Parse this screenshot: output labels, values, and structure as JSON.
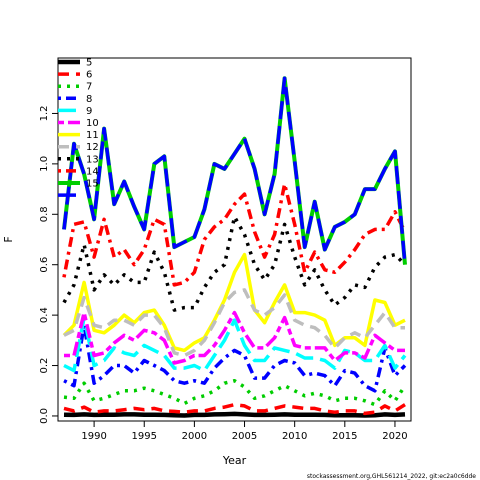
{
  "chart_data": {
    "type": "line",
    "xlabel": "Year",
    "ylabel": "F",
    "xlim": [
      1986.4,
      2021.6
    ],
    "ylim": [
      -0.02,
      1.42
    ],
    "x_ticks": [
      1990,
      1995,
      2000,
      2005,
      2010,
      2015,
      2020
    ],
    "y_ticks": [
      0.0,
      0.2,
      0.4,
      0.6,
      0.8,
      1.0,
      1.2
    ],
    "legend_position": "top-left",
    "footer": "stockassessment.org,GHL561214_2022,  git:ec2a0c6dde",
    "x": [
      1987,
      1988,
      1989,
      1990,
      1991,
      1992,
      1993,
      1994,
      1995,
      1996,
      1997,
      1998,
      1999,
      2000,
      2001,
      2002,
      2003,
      2004,
      2005,
      2006,
      2007,
      2008,
      2009,
      2010,
      2011,
      2012,
      2013,
      2014,
      2015,
      2016,
      2017,
      2018,
      2019,
      2020,
      2021
    ],
    "series": [
      {
        "name": "5",
        "color": "#000000",
        "dash": "solid",
        "width": 4.5,
        "values": [
          0.005,
          0.004,
          0.006,
          0.004,
          0.005,
          0.005,
          0.006,
          0.006,
          0.005,
          0.005,
          0.004,
          0.003,
          0.002,
          0.004,
          0.004,
          0.006,
          0.007,
          0.008,
          0.006,
          0.004,
          0.004,
          0.005,
          0.006,
          0.005,
          0.005,
          0.005,
          0.004,
          0.003,
          0.003,
          0.003,
          0.002,
          0.003,
          0.006,
          0.004,
          0.006
        ]
      },
      {
        "name": "6",
        "color": "#ff0000",
        "dash": "dash",
        "width": 3.5,
        "values": [
          0.03,
          0.02,
          0.035,
          0.015,
          0.02,
          0.02,
          0.025,
          0.03,
          0.025,
          0.03,
          0.02,
          0.018,
          0.015,
          0.02,
          0.02,
          0.03,
          0.035,
          0.045,
          0.04,
          0.02,
          0.02,
          0.03,
          0.04,
          0.035,
          0.03,
          0.03,
          0.02,
          0.015,
          0.02,
          0.02,
          0.01,
          0.015,
          0.04,
          0.02,
          0.045
        ]
      },
      {
        "name": "7",
        "color": "#00cd00",
        "dash": "dot",
        "width": 3.5,
        "values": [
          0.075,
          0.07,
          0.13,
          0.06,
          0.07,
          0.085,
          0.1,
          0.1,
          0.11,
          0.1,
          0.085,
          0.07,
          0.05,
          0.07,
          0.08,
          0.1,
          0.13,
          0.14,
          0.115,
          0.07,
          0.08,
          0.1,
          0.12,
          0.1,
          0.08,
          0.09,
          0.08,
          0.06,
          0.07,
          0.07,
          0.06,
          0.045,
          0.1,
          0.06,
          0.12
        ]
      },
      {
        "name": "8",
        "color": "#0000ff",
        "dash": "dashdot",
        "width": 3.5,
        "values": [
          0.14,
          0.12,
          0.36,
          0.13,
          0.16,
          0.2,
          0.2,
          0.17,
          0.22,
          0.2,
          0.18,
          0.14,
          0.13,
          0.14,
          0.13,
          0.19,
          0.23,
          0.26,
          0.24,
          0.15,
          0.15,
          0.2,
          0.22,
          0.21,
          0.16,
          0.17,
          0.16,
          0.12,
          0.18,
          0.17,
          0.12,
          0.1,
          0.27,
          0.16,
          0.2
        ]
      },
      {
        "name": "9",
        "color": "#00ffff",
        "dash": "longdash",
        "width": 3.5,
        "values": [
          0.2,
          0.18,
          0.39,
          0.2,
          0.22,
          0.27,
          0.25,
          0.24,
          0.28,
          0.26,
          0.24,
          0.19,
          0.19,
          0.2,
          0.18,
          0.24,
          0.3,
          0.38,
          0.28,
          0.22,
          0.22,
          0.27,
          0.26,
          0.25,
          0.23,
          0.23,
          0.22,
          0.19,
          0.26,
          0.25,
          0.22,
          0.22,
          0.28,
          0.19,
          0.24
        ]
      },
      {
        "name": "10",
        "color": "#ff00ff",
        "dash": "twodash",
        "width": 3.5,
        "values": [
          0.24,
          0.24,
          0.41,
          0.24,
          0.25,
          0.29,
          0.32,
          0.3,
          0.34,
          0.33,
          0.3,
          0.21,
          0.22,
          0.24,
          0.24,
          0.28,
          0.34,
          0.41,
          0.33,
          0.27,
          0.27,
          0.31,
          0.39,
          0.28,
          0.27,
          0.27,
          0.27,
          0.22,
          0.25,
          0.25,
          0.23,
          0.32,
          0.29,
          0.26,
          0.26
        ]
      },
      {
        "name": "11",
        "color": "#ffff00",
        "dash": "solid",
        "width": 3.5,
        "values": [
          0.32,
          0.36,
          0.53,
          0.34,
          0.33,
          0.36,
          0.4,
          0.37,
          0.41,
          0.42,
          0.36,
          0.27,
          0.26,
          0.29,
          0.31,
          0.38,
          0.46,
          0.57,
          0.64,
          0.42,
          0.37,
          0.45,
          0.52,
          0.41,
          0.41,
          0.4,
          0.38,
          0.28,
          0.31,
          0.31,
          0.28,
          0.46,
          0.45,
          0.36,
          0.38
        ]
      },
      {
        "name": "12",
        "color": "#bebebe",
        "dash": "dash",
        "width": 3.5,
        "values": [
          0.32,
          0.34,
          0.47,
          0.36,
          0.35,
          0.38,
          0.38,
          0.36,
          0.4,
          0.4,
          0.35,
          0.25,
          0.24,
          0.26,
          0.3,
          0.37,
          0.45,
          0.49,
          0.5,
          0.42,
          0.4,
          0.43,
          0.48,
          0.38,
          0.36,
          0.35,
          0.32,
          0.27,
          0.31,
          0.33,
          0.31,
          0.36,
          0.41,
          0.35,
          0.35
        ]
      },
      {
        "name": "13",
        "color": "#000000",
        "dash": "dot",
        "width": 3.5,
        "values": [
          0.45,
          0.52,
          0.68,
          0.5,
          0.56,
          0.52,
          0.56,
          0.53,
          0.53,
          0.65,
          0.57,
          0.42,
          0.43,
          0.43,
          0.51,
          0.57,
          0.6,
          0.79,
          0.72,
          0.6,
          0.54,
          0.6,
          0.76,
          0.63,
          0.52,
          0.58,
          0.5,
          0.44,
          0.47,
          0.52,
          0.51,
          0.59,
          0.63,
          0.64,
          0.6
        ]
      },
      {
        "name": "14",
        "color": "#ff0000",
        "dash": "dashdot",
        "width": 3.5,
        "values": [
          0.55,
          0.76,
          0.77,
          0.63,
          0.78,
          0.63,
          0.66,
          0.6,
          0.66,
          0.78,
          0.76,
          0.52,
          0.53,
          0.57,
          0.7,
          0.75,
          0.78,
          0.84,
          0.88,
          0.73,
          0.63,
          0.72,
          0.92,
          0.76,
          0.57,
          0.65,
          0.58,
          0.57,
          0.61,
          0.66,
          0.72,
          0.74,
          0.74,
          0.81,
          0.73
        ]
      },
      {
        "name": "15",
        "color": "#00cd00",
        "dash": "solid",
        "width": 4.0,
        "values": [
          0.74,
          1.08,
          0.96,
          0.78,
          1.14,
          0.84,
          0.93,
          0.83,
          0.74,
          1.0,
          1.03,
          0.67,
          0.69,
          0.71,
          0.82,
          1.0,
          0.98,
          1.04,
          1.1,
          0.98,
          0.8,
          0.96,
          1.34,
          1.01,
          0.67,
          0.85,
          0.66,
          0.75,
          0.77,
          0.8,
          0.9,
          0.9,
          0.98,
          1.05,
          0.6
        ]
      },
      {
        "name": "",
        "color": "#0000ff",
        "dash": "longdash",
        "width": 3.5,
        "values": [
          0.74,
          1.08,
          0.96,
          0.78,
          1.14,
          0.84,
          0.93,
          0.83,
          0.74,
          1.0,
          1.03,
          0.67,
          0.69,
          0.71,
          0.82,
          1.0,
          0.98,
          1.04,
          1.1,
          0.98,
          0.8,
          0.96,
          1.34,
          1.01,
          0.67,
          0.85,
          0.66,
          0.75,
          0.77,
          0.8,
          0.9,
          0.9,
          0.98,
          1.05,
          0.6
        ]
      }
    ]
  }
}
